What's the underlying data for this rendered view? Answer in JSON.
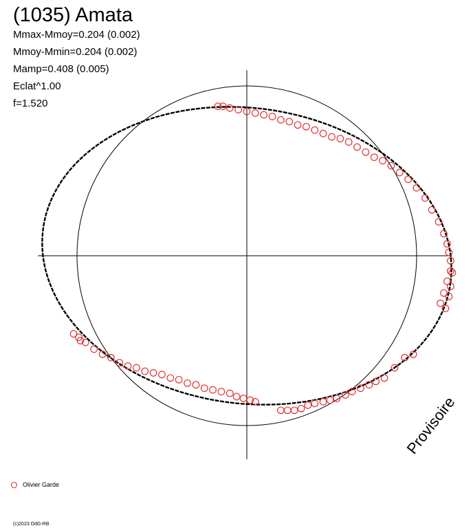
{
  "header": {
    "title": "(1035) Amata",
    "stats": [
      "Mmax-Mmoy=0.204 (0.002)",
      "Mmoy-Mmin=0.204 (0.002)",
      "Mamp=0.408 (0.005)",
      "Eclat^1.00",
      "f=1.520"
    ]
  },
  "watermark": "Provisoire",
  "legend": {
    "label": "Olivier Garde",
    "marker_color": "#e02020"
  },
  "copyright": "(c)2023 OdG-RB",
  "colors": {
    "obs": "#e02020",
    "model": "#000000",
    "axes": "#000000"
  },
  "chart_data": {
    "type": "scatter",
    "title": "(1035) Amata",
    "polar": true,
    "reference_circle_radius": 1.0,
    "grid": false,
    "legend_placement": "bottom-left",
    "series": [
      {
        "name": "Olivier Garde",
        "type": "scatter",
        "points": [
          [
            -0.17,
            0.88
          ],
          [
            -0.14,
            0.88
          ],
          [
            -0.1,
            0.87
          ],
          [
            -0.05,
            0.86
          ],
          [
            0.0,
            0.85
          ],
          [
            0.05,
            0.84
          ],
          [
            0.1,
            0.83
          ],
          [
            0.15,
            0.82
          ],
          [
            0.2,
            0.8
          ],
          [
            0.25,
            0.79
          ],
          [
            0.3,
            0.77
          ],
          [
            0.35,
            0.76
          ],
          [
            0.4,
            0.74
          ],
          [
            0.45,
            0.72
          ],
          [
            0.5,
            0.7
          ],
          [
            0.55,
            0.69
          ],
          [
            0.6,
            0.67
          ],
          [
            0.65,
            0.64
          ],
          [
            0.7,
            0.61
          ],
          [
            0.75,
            0.58
          ],
          [
            0.8,
            0.56
          ],
          [
            0.85,
            0.53
          ],
          [
            0.9,
            0.49
          ],
          [
            0.95,
            0.45
          ],
          [
            1.0,
            0.4
          ],
          [
            1.05,
            0.34
          ],
          [
            1.09,
            0.27
          ],
          [
            1.13,
            0.2
          ],
          [
            1.16,
            0.13
          ],
          [
            1.18,
            0.07
          ],
          [
            1.19,
            0.02
          ],
          [
            1.2,
            -0.03
          ],
          [
            1.2,
            -0.09
          ],
          [
            1.18,
            -0.15
          ],
          [
            1.16,
            -0.22
          ],
          [
            1.14,
            -0.28
          ],
          [
            1.17,
            -0.31
          ],
          [
            1.19,
            -0.24
          ],
          [
            1.2,
            -0.18
          ],
          [
            1.21,
            -0.1
          ],
          [
            0.98,
            -0.58
          ],
          [
            0.93,
            -0.6
          ],
          [
            0.87,
            -0.66
          ],
          [
            0.81,
            -0.72
          ],
          [
            0.76,
            -0.74
          ],
          [
            0.72,
            -0.76
          ],
          [
            0.67,
            -0.78
          ],
          [
            0.62,
            -0.8
          ],
          [
            0.58,
            -0.82
          ],
          [
            0.53,
            -0.84
          ],
          [
            0.49,
            -0.85
          ],
          [
            0.45,
            -0.86
          ],
          [
            0.4,
            -0.87
          ],
          [
            0.36,
            -0.88
          ],
          [
            0.32,
            -0.9
          ],
          [
            0.28,
            -0.91
          ],
          [
            0.24,
            -0.91
          ],
          [
            0.2,
            -0.91
          ],
          [
            0.05,
            -0.86
          ],
          [
            0.02,
            -0.85
          ],
          [
            -0.02,
            -0.84
          ],
          [
            -0.06,
            -0.83
          ],
          [
            -0.1,
            -0.81
          ],
          [
            -0.15,
            -0.8
          ],
          [
            -0.2,
            -0.79
          ],
          [
            -0.25,
            -0.78
          ],
          [
            -0.3,
            -0.76
          ],
          [
            -0.35,
            -0.75
          ],
          [
            -0.4,
            -0.73
          ],
          [
            -0.45,
            -0.72
          ],
          [
            -0.5,
            -0.7
          ],
          [
            -0.55,
            -0.69
          ],
          [
            -0.6,
            -0.68
          ],
          [
            -0.65,
            -0.66
          ],
          [
            -0.7,
            -0.65
          ],
          [
            -0.75,
            -0.63
          ],
          [
            -0.8,
            -0.6
          ],
          [
            -0.85,
            -0.58
          ],
          [
            -0.9,
            -0.55
          ],
          [
            -0.95,
            -0.51
          ],
          [
            -0.99,
            -0.48
          ],
          [
            -1.02,
            -0.46
          ],
          [
            -0.98,
            -0.5
          ]
        ]
      },
      {
        "name": "",
        "type": "line",
        "ellipse": {
          "semi_major": 1.21,
          "semi_minor": 0.87,
          "rotation_deg": -7.5,
          "center": [
            0.0,
            0.0
          ]
        }
      }
    ]
  }
}
